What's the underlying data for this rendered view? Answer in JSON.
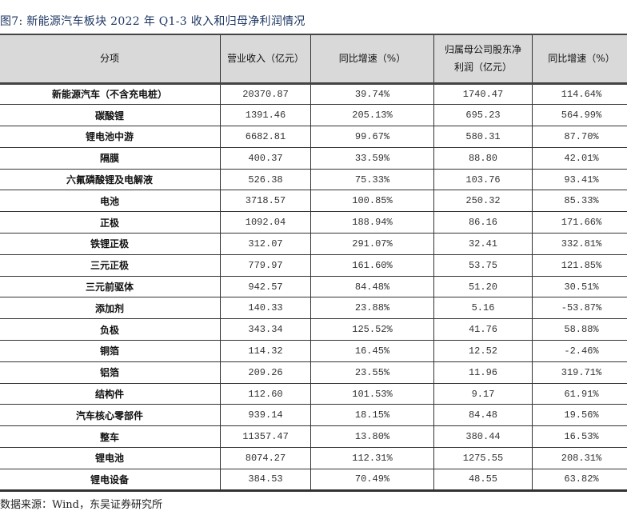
{
  "title": "图7: 新能源汽车板块 2022 年 Q1-3 收入和归母净利润情况",
  "columns": [
    "分项",
    "营业收入（亿元）",
    "同比增速（%）",
    "归属母公司股东净利润（亿元）",
    "同比增速（%）"
  ],
  "rows": [
    [
      "新能源汽车（不含充电桩）",
      "20370.87",
      "39.74%",
      "1740.47",
      "114.64%"
    ],
    [
      "碳酸锂",
      "1391.46",
      "205.13%",
      "695.23",
      "564.99%"
    ],
    [
      "锂电池中游",
      "6682.81",
      "99.67%",
      "580.31",
      "87.70%"
    ],
    [
      "隔膜",
      "400.37",
      "33.59%",
      "88.80",
      "42.01%"
    ],
    [
      "六氟磷酸锂及电解液",
      "526.38",
      "75.33%",
      "103.76",
      "93.41%"
    ],
    [
      "电池",
      "3718.57",
      "100.85%",
      "250.32",
      "85.33%"
    ],
    [
      "正极",
      "1092.04",
      "188.94%",
      "86.16",
      "171.66%"
    ],
    [
      "铁锂正极",
      "312.07",
      "291.07%",
      "32.41",
      "332.81%"
    ],
    [
      "三元正极",
      "779.97",
      "161.60%",
      "53.75",
      "121.85%"
    ],
    [
      "三元前驱体",
      "942.57",
      "84.48%",
      "51.20",
      "30.51%"
    ],
    [
      "添加剂",
      "140.33",
      "23.88%",
      "5.16",
      "-53.87%"
    ],
    [
      "负极",
      "343.34",
      "125.52%",
      "41.76",
      "58.88%"
    ],
    [
      "铜箔",
      "114.32",
      "16.45%",
      "12.52",
      "-2.46%"
    ],
    [
      "铝箔",
      "209.26",
      "23.55%",
      "11.96",
      "319.71%"
    ],
    [
      "结构件",
      "112.60",
      "101.53%",
      "9.17",
      "61.91%"
    ],
    [
      "汽车核心零部件",
      "939.14",
      "18.15%",
      "84.48",
      "19.56%"
    ],
    [
      "整车",
      "11357.47",
      "13.80%",
      "380.44",
      "16.53%"
    ],
    [
      "锂电池",
      "8074.27",
      "112.31%",
      "1275.55",
      "208.31%"
    ],
    [
      "锂电设备",
      "384.53",
      "70.49%",
      "48.55",
      "63.82%"
    ]
  ],
  "source": "数据来源：Wind，东吴证券研究所",
  "colors": {
    "title": "#1f3864",
    "header_bg": "#d9d9d9"
  }
}
